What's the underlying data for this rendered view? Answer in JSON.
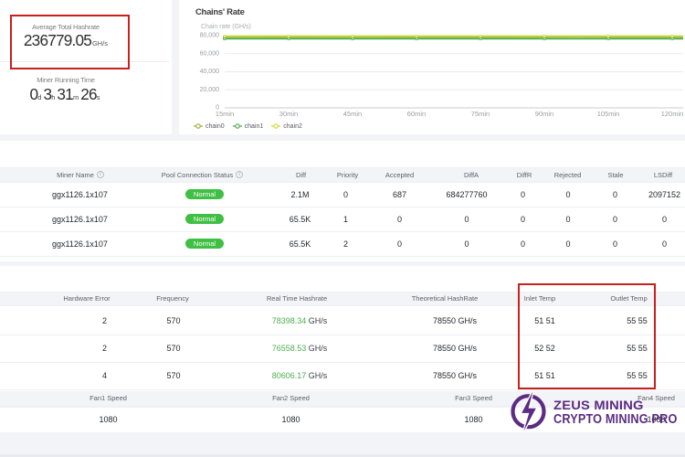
{
  "summary": {
    "avg_hashrate_label": "Average Total Hashrate",
    "avg_hashrate_value": "236779.05",
    "avg_hashrate_unit": "GH/s",
    "runtime_label": "Miner Running Time",
    "runtime_parts": [
      [
        "0",
        "d"
      ],
      [
        "3",
        "h"
      ],
      [
        "31",
        "m"
      ],
      [
        "26",
        "s"
      ]
    ]
  },
  "chart_data": {
    "type": "line",
    "title": "Chains' Rate",
    "axis_name": "Chain rate (GH/s)",
    "x": [
      "15min",
      "30min",
      "45min",
      "60min",
      "75min",
      "90min",
      "105min",
      "120min"
    ],
    "ylim": [
      0,
      80000
    ],
    "yticks": [
      0,
      20000,
      40000,
      60000,
      80000
    ],
    "ytick_labels": [
      "0",
      "20,000",
      "40,000",
      "60,000",
      "80,000"
    ],
    "grid": true,
    "legend_position": "bottom-left",
    "series": [
      {
        "name": "chain0",
        "color": "#a3ad3c",
        "values": [
          78350,
          78420,
          78380,
          78410,
          78400,
          78370,
          78420,
          78400
        ]
      },
      {
        "name": "chain1",
        "color": "#4caf50",
        "values": [
          76500,
          76560,
          76530,
          76580,
          76550,
          76520,
          76560,
          76558
        ]
      },
      {
        "name": "chain2",
        "color": "#cddc39",
        "values": [
          79450,
          79500,
          79470,
          79520,
          79490,
          79460,
          79510,
          79500
        ]
      }
    ]
  },
  "pools_table": {
    "headers": [
      "Miner Name",
      "Pool Connection Status",
      "Diff",
      "Priority",
      "Accepted",
      "DiffA",
      "DiffR",
      "Rejected",
      "Stale",
      "LSDiff"
    ],
    "rows": [
      {
        "miner": "ggx1126.1x107",
        "status": "Normal",
        "cells": [
          "2.1M",
          "0",
          "687",
          "684277760",
          "0",
          "0",
          "0",
          "2097152"
        ]
      },
      {
        "miner": "ggx1126.1x107",
        "status": "Normal",
        "cells": [
          "65.5K",
          "1",
          "0",
          "0",
          "0",
          "0",
          "0",
          "0"
        ]
      },
      {
        "miner": "ggx1126.1x107",
        "status": "Normal",
        "cells": [
          "65.5K",
          "2",
          "0",
          "0",
          "0",
          "0",
          "0",
          "0"
        ]
      }
    ]
  },
  "boards_table": {
    "headers": [
      "Hardware Error",
      "Frequency",
      "Real Time Hashrate",
      "Theoretical HashRate",
      "Inlet Temp",
      "Outlet Temp"
    ],
    "rows": [
      {
        "hw": "2",
        "freq": "570",
        "rt_value": "78398.34",
        "rt_unit": "GH/s",
        "theoretical": "78550 GH/s",
        "inlet": "51 51",
        "outlet": "55 55"
      },
      {
        "hw": "2",
        "freq": "570",
        "rt_value": "76558.53",
        "rt_unit": "GH/s",
        "theoretical": "78550 GH/s",
        "inlet": "52 52",
        "outlet": "55 55"
      },
      {
        "hw": "4",
        "freq": "570",
        "rt_value": "80606.17",
        "rt_unit": "GH/s",
        "theoretical": "78550 GH/s",
        "inlet": "51 51",
        "outlet": "55 55"
      }
    ]
  },
  "fans_table": {
    "headers": [
      "Fan1 Speed",
      "Fan2 Speed",
      "Fan3 Speed",
      "Fan4 Speed"
    ],
    "values": [
      "1080",
      "1080",
      "1080",
      "1080"
    ]
  },
  "watermark": {
    "line1": "ZEUS MINING",
    "line2": "CRYPTO MINING PRO",
    "color": "#5b2c82"
  },
  "colors": {
    "annotation_red": "#c9201d",
    "status_ok_green": "#3fbf43",
    "hashrate_green": "#4caf50"
  }
}
